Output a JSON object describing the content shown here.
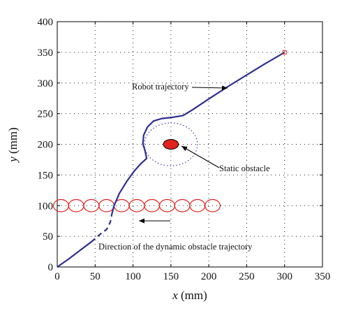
{
  "chart_data": {
    "type": "line",
    "xlabel_var": "x",
    "xlabel_unit": "(mm)",
    "ylabel_var": "y",
    "ylabel_unit": "(mm)",
    "xlim": [
      0,
      350
    ],
    "ylim": [
      0,
      400
    ],
    "xticks": [
      0,
      50,
      100,
      150,
      200,
      250,
      300,
      350
    ],
    "yticks": [
      0,
      50,
      100,
      150,
      200,
      250,
      300,
      350,
      400
    ],
    "grid": "dotted",
    "colors": {
      "trajectory": "#2e2f8f",
      "obstacle": "#e0231c",
      "dynamic_obstacle": "#e0231c",
      "safety_circle": "#3b3b9a"
    },
    "series": [
      {
        "role": "robot-trajectory",
        "points": [
          [
            0,
            0
          ],
          [
            15,
            13
          ],
          [
            30,
            27
          ],
          [
            45,
            41
          ],
          [
            60,
            57
          ],
          [
            65,
            61
          ],
          [
            70,
            73
          ],
          [
            72,
            86
          ],
          [
            75,
            100
          ],
          [
            82,
            120
          ],
          [
            92,
            140
          ],
          [
            102,
            157
          ],
          [
            110,
            168
          ],
          [
            118,
            177
          ],
          [
            116,
            189
          ],
          [
            113,
            201
          ],
          [
            114,
            215
          ],
          [
            119,
            228
          ],
          [
            127,
            238
          ],
          [
            138,
            242
          ],
          [
            152,
            244
          ],
          [
            166,
            247
          ],
          [
            178,
            256
          ],
          [
            200,
            274
          ],
          [
            225,
            294
          ],
          [
            250,
            313
          ],
          [
            275,
            332
          ],
          [
            300,
            350
          ]
        ],
        "dashed_segment_x": [
          58,
          72
        ]
      }
    ],
    "start_marker": {
      "x": 300,
      "y": 350
    },
    "static_obstacle": {
      "x": 150,
      "y": 200,
      "rx": 10,
      "ry": 8
    },
    "safety_circle": {
      "x": 150,
      "y": 200,
      "r": 35
    },
    "dynamic_obstacles": {
      "y": 100,
      "x": [
        5,
        25,
        45,
        65,
        85,
        105,
        125,
        145,
        165,
        185,
        205
      ],
      "r": 10
    },
    "annotations": {
      "robot_trajectory": "Robot trajectory",
      "static_obstacle": "Static obstacle",
      "dynamic_direction": "Direction of the dynamic obstacle trajectory"
    }
  }
}
